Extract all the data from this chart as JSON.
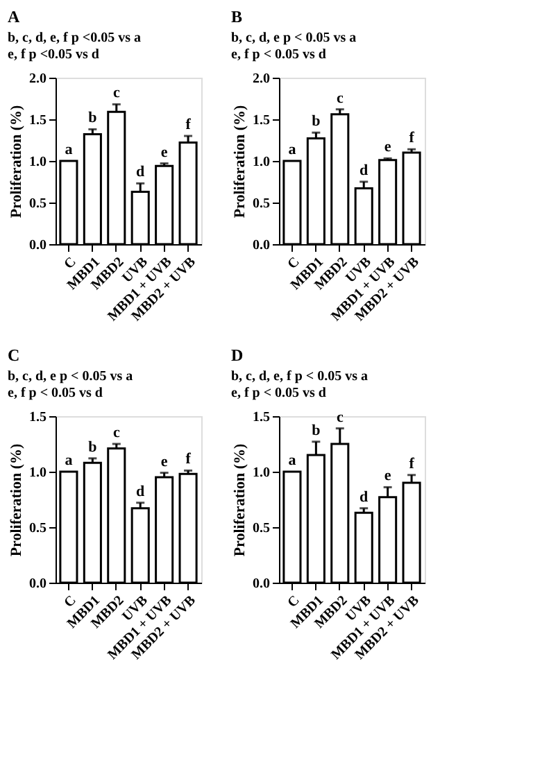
{
  "chart_data": [
    {
      "type": "bar",
      "title": "A",
      "annotations": [
        "b, c, d, e, f  p <0.05 vs a",
        "e, f  p <0.05 vs d"
      ],
      "ylabel": "Proliferation (%)",
      "categories": [
        "C",
        "MBD1",
        "MBD2",
        "UVB",
        "MBD1 + UVB",
        "MBD2 + UVB"
      ],
      "series": [
        {
          "color": "#ffffff",
          "values": [
            1.0,
            1.32,
            1.59,
            0.63,
            0.94,
            1.22
          ],
          "errors": [
            null,
            [
              1.32,
              1.38
            ],
            [
              1.59,
              1.68
            ],
            [
              0.63,
              0.73
            ],
            [
              0.94,
              0.97
            ],
            [
              1.22,
              1.3
            ]
          ],
          "value_labels": [
            "a",
            "b",
            "c",
            "d",
            "e",
            "f"
          ]
        }
      ],
      "ylim": [
        0,
        2
      ],
      "yticks": [
        {
          "value": 0,
          "label": "0.0"
        },
        {
          "value": 0.5,
          "label": "0.5"
        },
        {
          "value": 1,
          "label": "1.0"
        },
        {
          "value": 1.5,
          "label": "1.5"
        },
        {
          "value": 2,
          "label": "2.0"
        }
      ],
      "grid": false
    },
    {
      "type": "bar",
      "title": "B",
      "annotations": [
        "b, c, d, e p < 0.05 vs a",
        "e, f  p < 0.05 vs d"
      ],
      "ylabel": "Proliferation (%)",
      "categories": [
        "C",
        "MBD1",
        "MBD2",
        "UVB",
        "MBD1 + UVB",
        "MBD2 + UVB"
      ],
      "series": [
        {
          "color": "#ffffff",
          "values": [
            1.0,
            1.27,
            1.56,
            0.67,
            1.01,
            1.1
          ],
          "errors": [
            null,
            [
              1.27,
              1.34
            ],
            [
              1.56,
              1.62
            ],
            [
              0.67,
              0.75
            ],
            [
              1.01,
              1.03
            ],
            [
              1.1,
              1.14
            ]
          ],
          "value_labels": [
            "a",
            "b",
            "c",
            "d",
            "e",
            "f"
          ]
        }
      ],
      "ylim": [
        0,
        2
      ],
      "yticks": [
        {
          "value": 0,
          "label": "0.0"
        },
        {
          "value": 0.5,
          "label": "0.5"
        },
        {
          "value": 1,
          "label": "1.0"
        },
        {
          "value": 1.5,
          "label": "1.5"
        },
        {
          "value": 2,
          "label": "2.0"
        }
      ],
      "grid": false
    },
    {
      "type": "bar",
      "title": "C",
      "annotations": [
        "b, c, d, e p < 0.05 vs a",
        "e, f  p < 0.05 vs d"
      ],
      "ylabel": "Proliferation (%)",
      "categories": [
        "C",
        "MBD1",
        "MBD2",
        "UVB",
        "MBD1 + UVB",
        "MBD2 + UVB"
      ],
      "series": [
        {
          "color": "#ffffff",
          "values": [
            1.0,
            1.08,
            1.21,
            0.67,
            0.95,
            0.98
          ],
          "errors": [
            null,
            [
              1.08,
              1.12
            ],
            [
              1.21,
              1.25
            ],
            [
              0.67,
              0.72
            ],
            [
              0.95,
              0.99
            ],
            [
              0.98,
              1.01
            ]
          ],
          "value_labels": [
            "a",
            "b",
            "c",
            "d",
            "e",
            "f"
          ]
        }
      ],
      "ylim": [
        0,
        1.5
      ],
      "yticks": [
        {
          "value": 0,
          "label": "0.0"
        },
        {
          "value": 0.5,
          "label": "0.5"
        },
        {
          "value": 1,
          "label": "1.0"
        },
        {
          "value": 1.5,
          "label": "1.5"
        }
      ],
      "grid": false
    },
    {
      "type": "bar",
      "title": "D",
      "annotations": [
        "b, c, d, e, f p < 0.05 vs a",
        "e, f  p < 0.05 vs d"
      ],
      "ylabel": "Proliferation (%)",
      "categories": [
        "C",
        "MBD1",
        "MBD2",
        "UVB",
        "MBD1 + UVB",
        "MBD2 + UVB"
      ],
      "series": [
        {
          "color": "#ffffff",
          "values": [
            1.0,
            1.15,
            1.25,
            0.63,
            0.77,
            0.9
          ],
          "errors": [
            null,
            [
              1.15,
              1.27
            ],
            [
              1.25,
              1.39
            ],
            [
              0.63,
              0.67
            ],
            [
              0.77,
              0.86
            ],
            [
              0.9,
              0.97
            ]
          ],
          "value_labels": [
            "a",
            "b",
            "c",
            "d",
            "e",
            "f"
          ]
        }
      ],
      "ylim": [
        0,
        1.5
      ],
      "yticks": [
        {
          "value": 0,
          "label": "0.0"
        },
        {
          "value": 0.5,
          "label": "0.5"
        },
        {
          "value": 1,
          "label": "1.0"
        },
        {
          "value": 1.5,
          "label": "1.5"
        }
      ],
      "grid": false
    }
  ]
}
